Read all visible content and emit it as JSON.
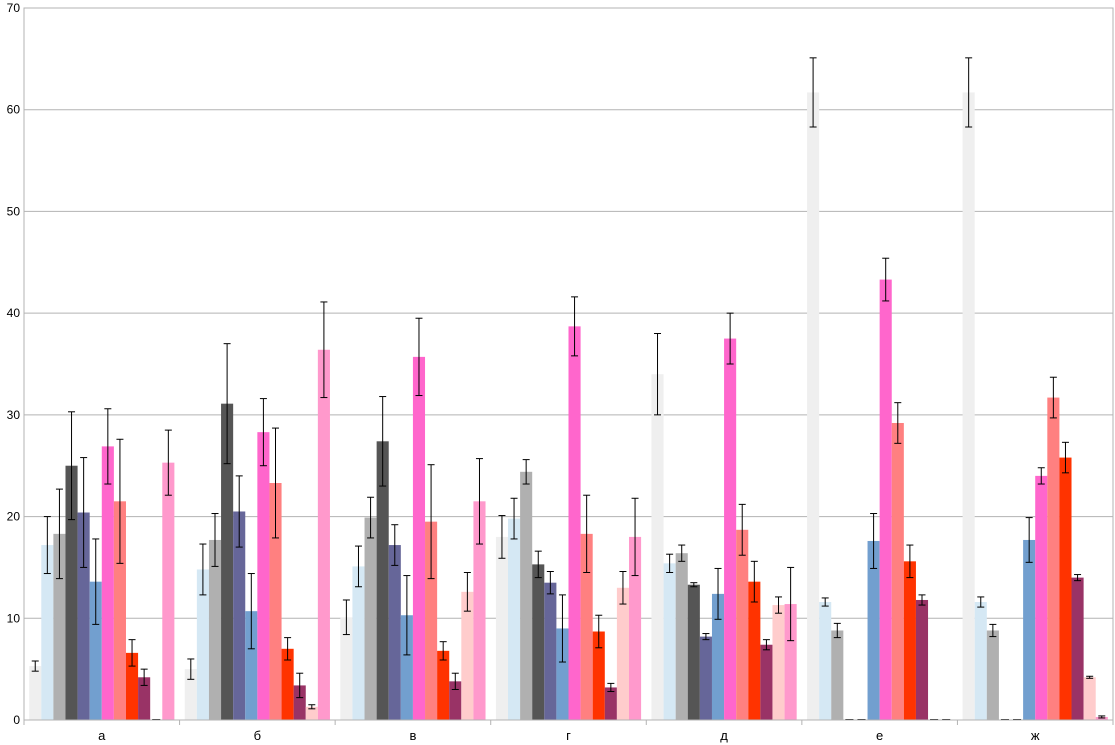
{
  "chart_data": {
    "type": "bar",
    "categories": [
      "а",
      "б",
      "в",
      "г",
      "д",
      "е",
      "ж"
    ],
    "ylim": [
      0,
      70
    ],
    "yticks": [
      0,
      10,
      20,
      30,
      40,
      50,
      60,
      70
    ],
    "grid": true,
    "legend": "none",
    "title": "",
    "xlabel": "",
    "ylabel": "",
    "series": [
      {
        "color": "#efefef",
        "values": [
          5.3,
          5.0,
          10.1,
          18.0,
          34.0,
          61.7,
          61.7
        ],
        "errors": [
          0.5,
          1.0,
          1.7,
          2.1,
          4.0,
          3.4,
          3.4
        ]
      },
      {
        "color": "#d5e8f4",
        "values": [
          17.2,
          14.8,
          15.1,
          19.8,
          15.4,
          11.6,
          11.6
        ],
        "errors": [
          2.8,
          2.5,
          2.0,
          2.0,
          0.9,
          0.4,
          0.5
        ]
      },
      {
        "color": "#b0b0b0",
        "values": [
          18.3,
          17.7,
          19.9,
          24.4,
          16.4,
          8.8,
          8.8
        ],
        "errors": [
          4.4,
          2.6,
          2.0,
          1.2,
          0.8,
          0.7,
          0.6
        ]
      },
      {
        "color": "#555555",
        "values": [
          25.0,
          31.1,
          27.4,
          15.3,
          13.3,
          0,
          0
        ],
        "errors": [
          5.3,
          5.9,
          4.4,
          1.3,
          0.2,
          0,
          0
        ]
      },
      {
        "color": "#666699",
        "values": [
          20.4,
          20.5,
          17.2,
          13.5,
          8.2,
          0,
          0
        ],
        "errors": [
          5.4,
          3.5,
          2.0,
          1.1,
          0.3,
          0,
          0
        ]
      },
      {
        "color": "#729fcf",
        "values": [
          13.6,
          10.7,
          10.3,
          9.0,
          12.4,
          17.6,
          17.7
        ],
        "errors": [
          4.2,
          3.7,
          3.9,
          3.3,
          2.5,
          2.7,
          2.2
        ]
      },
      {
        "color": "#ff66cc",
        "values": [
          26.9,
          28.3,
          35.7,
          38.7,
          37.5,
          43.3,
          24.0
        ],
        "errors": [
          3.7,
          3.3,
          3.8,
          2.9,
          2.5,
          2.1,
          0.8
        ]
      },
      {
        "color": "#ff8080",
        "values": [
          21.5,
          23.3,
          19.5,
          18.3,
          18.7,
          29.2,
          31.7
        ],
        "errors": [
          6.1,
          5.4,
          5.6,
          3.8,
          2.5,
          2.0,
          2.0
        ]
      },
      {
        "color": "#ff3300",
        "values": [
          6.6,
          7.0,
          6.8,
          8.7,
          13.6,
          15.6,
          25.8
        ],
        "errors": [
          1.3,
          1.1,
          0.9,
          1.6,
          2.0,
          1.6,
          1.5
        ]
      },
      {
        "color": "#993366",
        "values": [
          4.2,
          3.4,
          3.8,
          3.2,
          7.4,
          11.8,
          14.0
        ],
        "errors": [
          0.8,
          1.2,
          0.8,
          0.4,
          0.5,
          0.5,
          0.3
        ]
      },
      {
        "color": "#ffcccc",
        "values": [
          0,
          1.3,
          12.6,
          13.0,
          11.3,
          0,
          4.2
        ],
        "errors": [
          0,
          0.2,
          1.9,
          1.6,
          0.8,
          0,
          0.1
        ]
      },
      {
        "color": "#ff99cc",
        "values": [
          25.3,
          36.4,
          21.5,
          18.0,
          11.4,
          0,
          0.3
        ],
        "errors": [
          3.2,
          4.7,
          4.2,
          3.8,
          3.6,
          0,
          0.1
        ]
      }
    ]
  }
}
